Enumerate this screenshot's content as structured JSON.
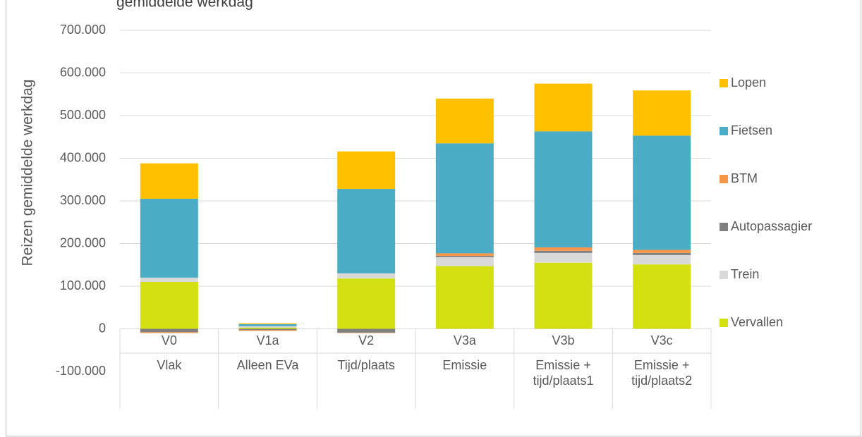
{
  "chart_data": {
    "type": "stacked_bar",
    "title": "gemiddelde werkdag",
    "y_label": "Reizen gemiddelde werkdag",
    "categories": [
      "V0",
      "V1a",
      "V2",
      "V3a",
      "V3b",
      "V3c"
    ],
    "category_groups": [
      "Vlak",
      "Alleen EVa",
      "Tijd/plaats",
      "Emissie",
      "Emissie + tijd/plaats1",
      "Emissie + tijd/plaats2"
    ],
    "series": [
      {
        "name": "Vervallen",
        "color": "#d4e012",
        "values": [
          110000,
          3000,
          118000,
          147000,
          155000,
          151000
        ]
      },
      {
        "name": "Trein",
        "color": "#d9d9d9",
        "values": [
          10000,
          3000,
          12000,
          21000,
          23000,
          22000
        ]
      },
      {
        "name": "Autopassagier",
        "color": "#7f7f7f",
        "values": [
          -8000,
          -3000,
          -9000,
          3000,
          5000,
          5000
        ]
      },
      {
        "name": "BTM",
        "color": "#f79646",
        "values": [
          -2000,
          -2000,
          -1000,
          6000,
          8000,
          7000
        ]
      },
      {
        "name": "Fietsen",
        "color": "#4bacc6",
        "values": [
          185000,
          5000,
          198000,
          258000,
          272000,
          268000
        ]
      },
      {
        "name": "Lopen",
        "color": "#ffc000",
        "values": [
          83000,
          2000,
          88000,
          105000,
          112000,
          106000
        ]
      }
    ],
    "ylim": [
      -100000,
      700000
    ],
    "yticks": [
      {
        "value": -100000,
        "label": "-100.000"
      },
      0,
      {
        "value": 100000,
        "label": "100.000"
      },
      {
        "value": 200000,
        "label": "200.000"
      },
      {
        "value": 300000,
        "label": "300.000"
      },
      {
        "value": 400000,
        "label": "400.000"
      },
      {
        "value": 500000,
        "label": "500.000"
      },
      {
        "value": 600000,
        "label": "600.000"
      },
      {
        "value": 700000,
        "label": "700.000"
      }
    ],
    "grid": true,
    "legend": "right"
  }
}
